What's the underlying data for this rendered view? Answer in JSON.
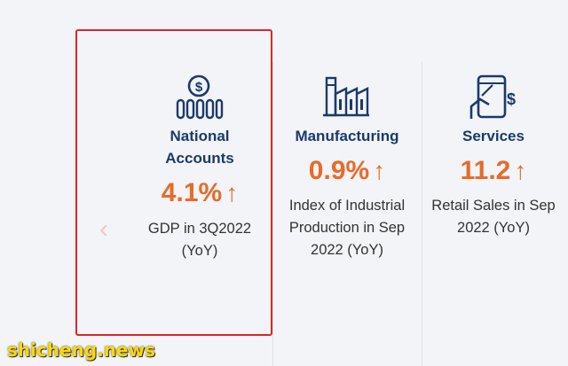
{
  "cards": [
    {
      "icon": "coins-money-icon",
      "title_line1": "National",
      "title_line2": "Accounts",
      "value": "4.1%",
      "arrow": "↑",
      "desc_line1": "GDP in 3Q2022",
      "desc_line2": "(YoY)",
      "selected": true
    },
    {
      "icon": "factory-icon",
      "title_line1": "Manufacturing",
      "value": "0.9%",
      "arrow": "↑",
      "desc_line1": "Index of Industrial",
      "desc_line2": "Production in Sep",
      "desc_line3": "2022 (YoY)"
    },
    {
      "icon": "phone-payment-icon",
      "title_line1": "Services",
      "value": "11.2",
      "arrow": "↑",
      "desc_line1": "Retail Sales in Sep",
      "desc_line2": "2022 (YoY)"
    }
  ],
  "nav": {
    "prev_glyph": "‹"
  },
  "watermark": "shicheng.news",
  "colors": {
    "title": "#1a3a6b",
    "value": "#e76b2a",
    "selected_border": "#e02525",
    "background": "#f3f4f7"
  }
}
